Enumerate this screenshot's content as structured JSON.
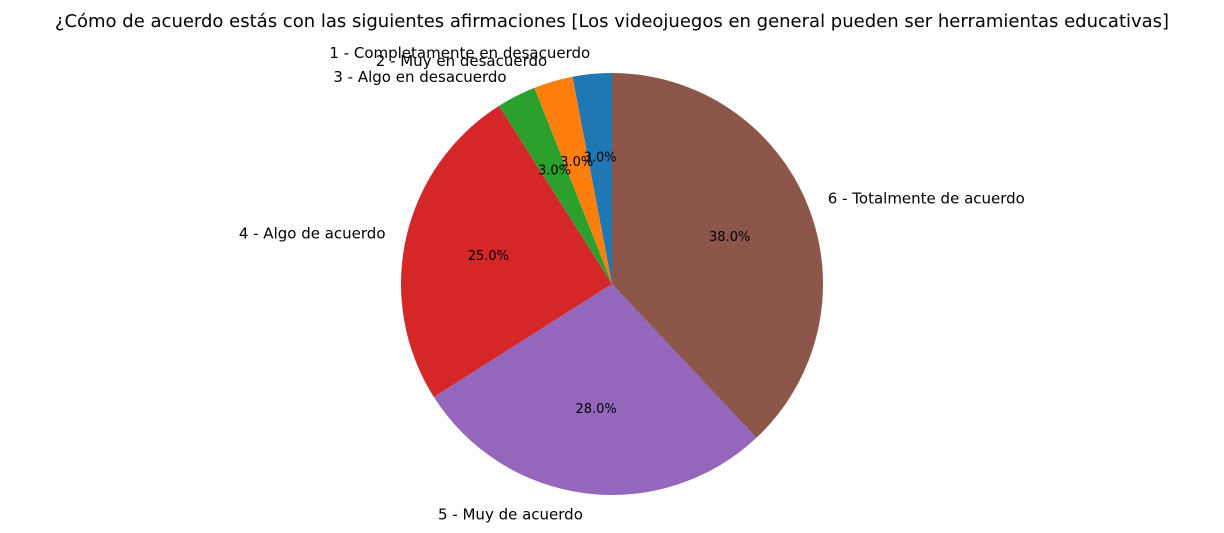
{
  "chart_data": {
    "type": "pie",
    "title": "¿Cómo de acuerdo estás con las siguientes afirmaciones [Los videojuegos en general pueden ser herramientas educativas]",
    "slices": [
      {
        "label": "1 - Completamente en desacuerdo",
        "value": 3.0,
        "pct_label": "3.0%",
        "color": "#1f77b4"
      },
      {
        "label": "2 - Muy en desacuerdo",
        "value": 3.0,
        "pct_label": "3.0%",
        "color": "#ff7f0e"
      },
      {
        "label": "3 - Algo en desacuerdo",
        "value": 3.0,
        "pct_label": "3.0%",
        "color": "#2ca02c"
      },
      {
        "label": "4 - Algo de acuerdo",
        "value": 25.0,
        "pct_label": "25.0%",
        "color": "#d62728"
      },
      {
        "label": "5 - Muy de acuerdo",
        "value": 28.0,
        "pct_label": "28.0%",
        "color": "#9467bd"
      },
      {
        "label": "6 - Totalmente de acuerdo",
        "value": 38.0,
        "pct_label": "38.0%",
        "color": "#8c564b"
      }
    ],
    "start_angle": "top",
    "direction": "counterclockwise",
    "legend": "none"
  }
}
